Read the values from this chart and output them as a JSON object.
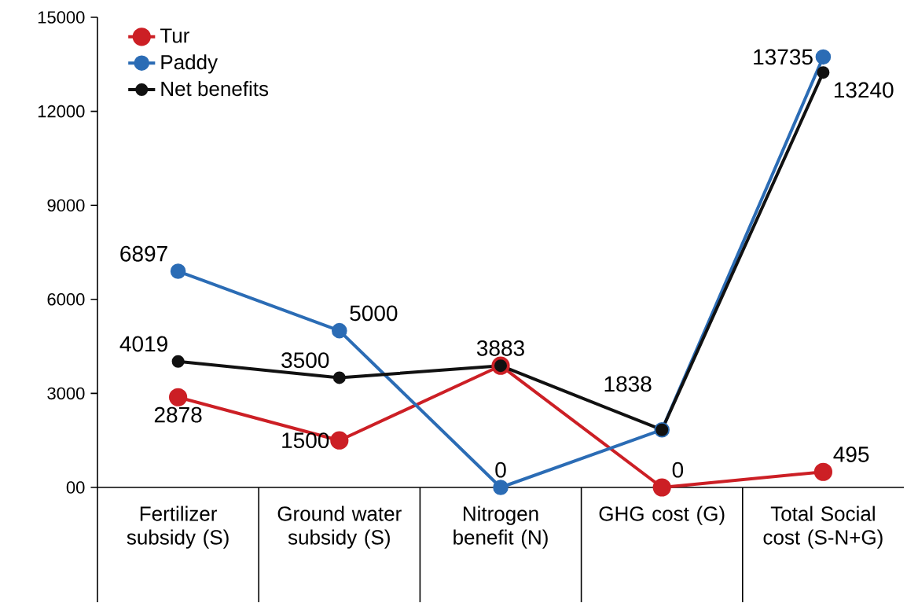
{
  "chart_data": {
    "type": "line",
    "categories": [
      "Fertilizer subsidy (S)",
      "Ground water subsidy (S)",
      "Nitrogen benefit (N)",
      "GHG cost (G)",
      "Total Social cost (S-N+G)"
    ],
    "series": [
      {
        "name": "Tur",
        "color": "#cc1f25",
        "values": [
          2878,
          1500,
          3883,
          0,
          495
        ],
        "value_labels": [
          "2878",
          "1500",
          null,
          "0",
          "495"
        ]
      },
      {
        "name": "Paddy",
        "color": "#2b6cb5",
        "values": [
          6897,
          5000,
          0,
          1838,
          13735
        ],
        "value_labels": [
          "6897",
          "5000",
          "0",
          null,
          "13735"
        ]
      },
      {
        "name": "Net benefits",
        "color": "#111111",
        "values": [
          4019,
          3500,
          3883,
          1838,
          13240
        ],
        "value_labels": [
          "4019",
          "3500",
          "3883",
          "1838",
          "13240"
        ]
      }
    ],
    "ylim": [
      0,
      15000
    ],
    "yticks": [
      {
        "value": 0,
        "label": "00"
      },
      3000,
      6000,
      9000,
      12000,
      15000
    ],
    "legend": "top left",
    "marker": "circle"
  }
}
